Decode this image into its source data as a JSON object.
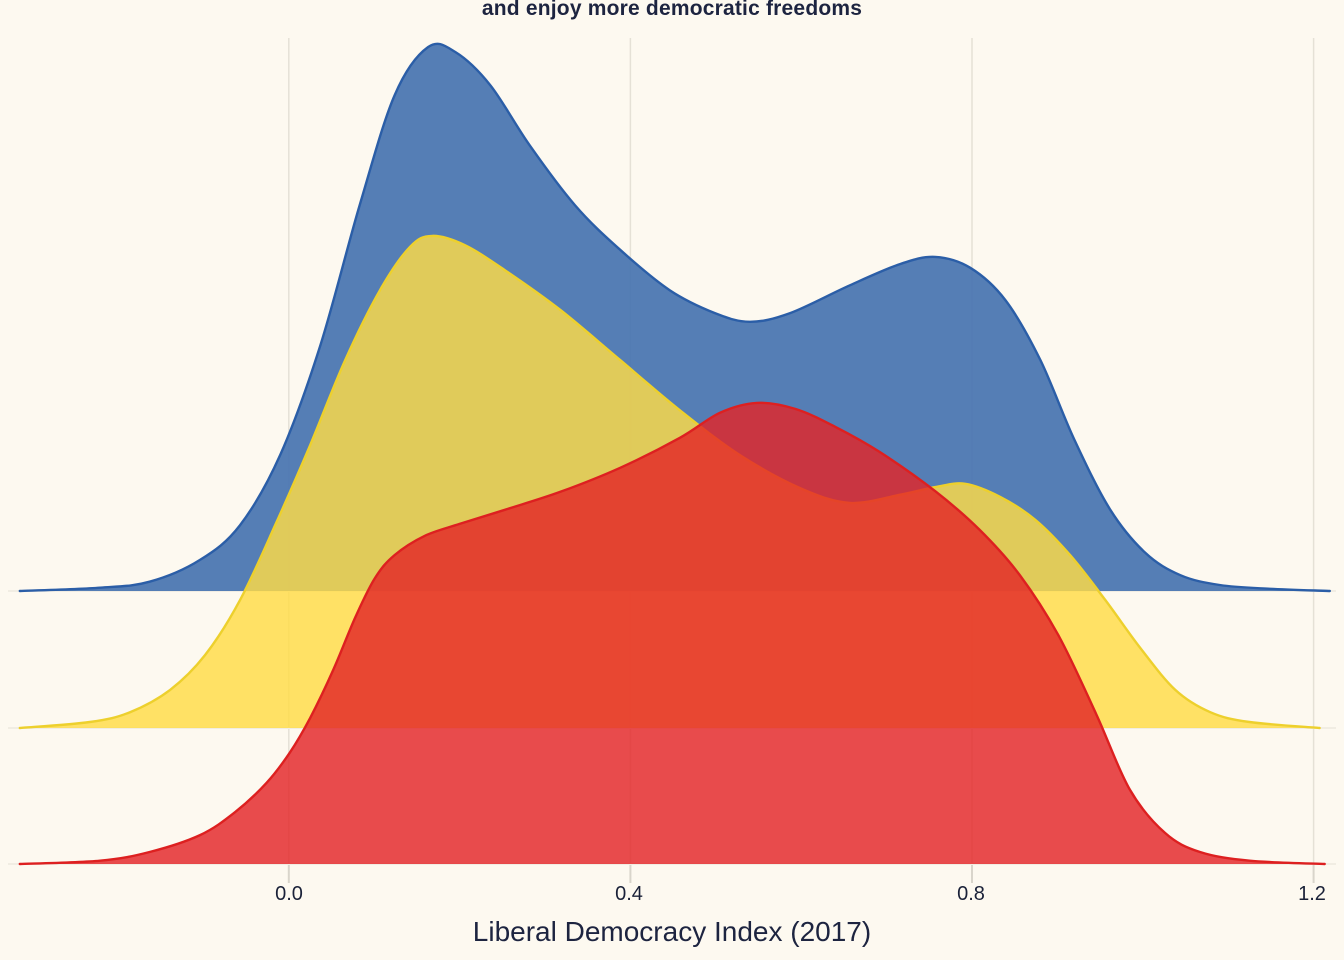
{
  "page": {
    "background": "#fdf9f0"
  },
  "header": {
    "title": "and enjoy more democratic freedoms"
  },
  "colors": {
    "background": "#fdf9f0",
    "grid": "#e5e1d6",
    "axis_tick": "#d9d5cb",
    "baseline_line": "#f1ede3",
    "text": "#1d2440",
    "tick_text": "#1a2138"
  },
  "chart_data": {
    "type": "area",
    "variant": "ridgeline-density",
    "title": "and enjoy more democratic freedoms",
    "xlabel": "Liberal Democracy Index (2017)",
    "x_ticks": [
      "0.0",
      "0.4",
      "0.8",
      "1.2"
    ],
    "x_tick_values": [
      0.0,
      0.4,
      0.8,
      1.2
    ],
    "xlim": [
      -0.33,
      1.24
    ],
    "grid": "vertical-only",
    "legend": "none",
    "ylabel": "",
    "rows": 3,
    "series": [
      {
        "name": "blue-top-ridge",
        "row": 0,
        "fill": "#4874b0",
        "fill_opacity": 0.93,
        "stroke": "#2b5ea7",
        "points": [
          [
            -0.315,
            0.0
          ],
          [
            -0.221,
            0.006
          ],
          [
            -0.163,
            0.017
          ],
          [
            -0.104,
            0.057
          ],
          [
            -0.057,
            0.121
          ],
          [
            -0.01,
            0.25
          ],
          [
            0.037,
            0.451
          ],
          [
            0.083,
            0.708
          ],
          [
            0.124,
            0.91
          ],
          [
            0.163,
            0.998
          ],
          [
            0.195,
            0.989
          ],
          [
            0.236,
            0.928
          ],
          [
            0.282,
            0.818
          ],
          [
            0.335,
            0.708
          ],
          [
            0.388,
            0.626
          ],
          [
            0.446,
            0.552
          ],
          [
            0.499,
            0.51
          ],
          [
            0.54,
            0.494
          ],
          [
            0.587,
            0.51
          ],
          [
            0.657,
            0.561
          ],
          [
            0.716,
            0.6
          ],
          [
            0.757,
            0.613
          ],
          [
            0.798,
            0.593
          ],
          [
            0.839,
            0.534
          ],
          [
            0.88,
            0.424
          ],
          [
            0.92,
            0.277
          ],
          [
            0.962,
            0.149
          ],
          [
            1.003,
            0.07
          ],
          [
            1.044,
            0.029
          ],
          [
            1.09,
            0.011
          ],
          [
            1.149,
            0.004
          ],
          [
            1.219,
            0.0
          ]
        ]
      },
      {
        "name": "yellow-middle-ridge",
        "row": 1,
        "fill": "#ffdc46",
        "fill_opacity": 0.82,
        "stroke": "#edd02d",
        "points": [
          [
            -0.315,
            0.0
          ],
          [
            -0.233,
            0.011
          ],
          [
            -0.186,
            0.029
          ],
          [
            -0.139,
            0.07
          ],
          [
            -0.098,
            0.134
          ],
          [
            -0.057,
            0.235
          ],
          [
            -0.016,
            0.372
          ],
          [
            0.025,
            0.519
          ],
          [
            0.066,
            0.675
          ],
          [
            0.107,
            0.804
          ],
          [
            0.142,
            0.883
          ],
          [
            0.168,
            0.903
          ],
          [
            0.206,
            0.886
          ],
          [
            0.253,
            0.84
          ],
          [
            0.318,
            0.767
          ],
          [
            0.388,
            0.675
          ],
          [
            0.458,
            0.583
          ],
          [
            0.528,
            0.501
          ],
          [
            0.599,
            0.44
          ],
          [
            0.657,
            0.413
          ],
          [
            0.716,
            0.428
          ],
          [
            0.757,
            0.442
          ],
          [
            0.792,
            0.448
          ],
          [
            0.833,
            0.424
          ],
          [
            0.874,
            0.382
          ],
          [
            0.915,
            0.317
          ],
          [
            0.956,
            0.235
          ],
          [
            0.997,
            0.147
          ],
          [
            1.038,
            0.07
          ],
          [
            1.079,
            0.029
          ],
          [
            1.125,
            0.011
          ],
          [
            1.207,
            0.0
          ]
        ]
      },
      {
        "name": "red-bottom-ridge",
        "row": 2,
        "fill": "#e32427",
        "fill_opacity": 0.82,
        "stroke": "#dd2020",
        "points": [
          [
            -0.315,
            0.0
          ],
          [
            -0.221,
            0.006
          ],
          [
            -0.163,
            0.022
          ],
          [
            -0.104,
            0.053
          ],
          [
            -0.063,
            0.095
          ],
          [
            -0.026,
            0.149
          ],
          [
            0.001,
            0.204
          ],
          [
            0.025,
            0.268
          ],
          [
            0.052,
            0.356
          ],
          [
            0.078,
            0.453
          ],
          [
            0.101,
            0.525
          ],
          [
            0.124,
            0.567
          ],
          [
            0.159,
            0.602
          ],
          [
            0.2,
            0.624
          ],
          [
            0.253,
            0.65
          ],
          [
            0.318,
            0.683
          ],
          [
            0.388,
            0.727
          ],
          [
            0.458,
            0.782
          ],
          [
            0.505,
            0.828
          ],
          [
            0.548,
            0.846
          ],
          [
            0.593,
            0.835
          ],
          [
            0.64,
            0.802
          ],
          [
            0.692,
            0.756
          ],
          [
            0.757,
            0.684
          ],
          [
            0.809,
            0.613
          ],
          [
            0.856,
            0.53
          ],
          [
            0.901,
            0.42
          ],
          [
            0.946,
            0.273
          ],
          [
            0.985,
            0.136
          ],
          [
            1.026,
            0.057
          ],
          [
            1.067,
            0.022
          ],
          [
            1.125,
            0.006
          ],
          [
            1.213,
            0.0
          ]
        ]
      }
    ]
  }
}
